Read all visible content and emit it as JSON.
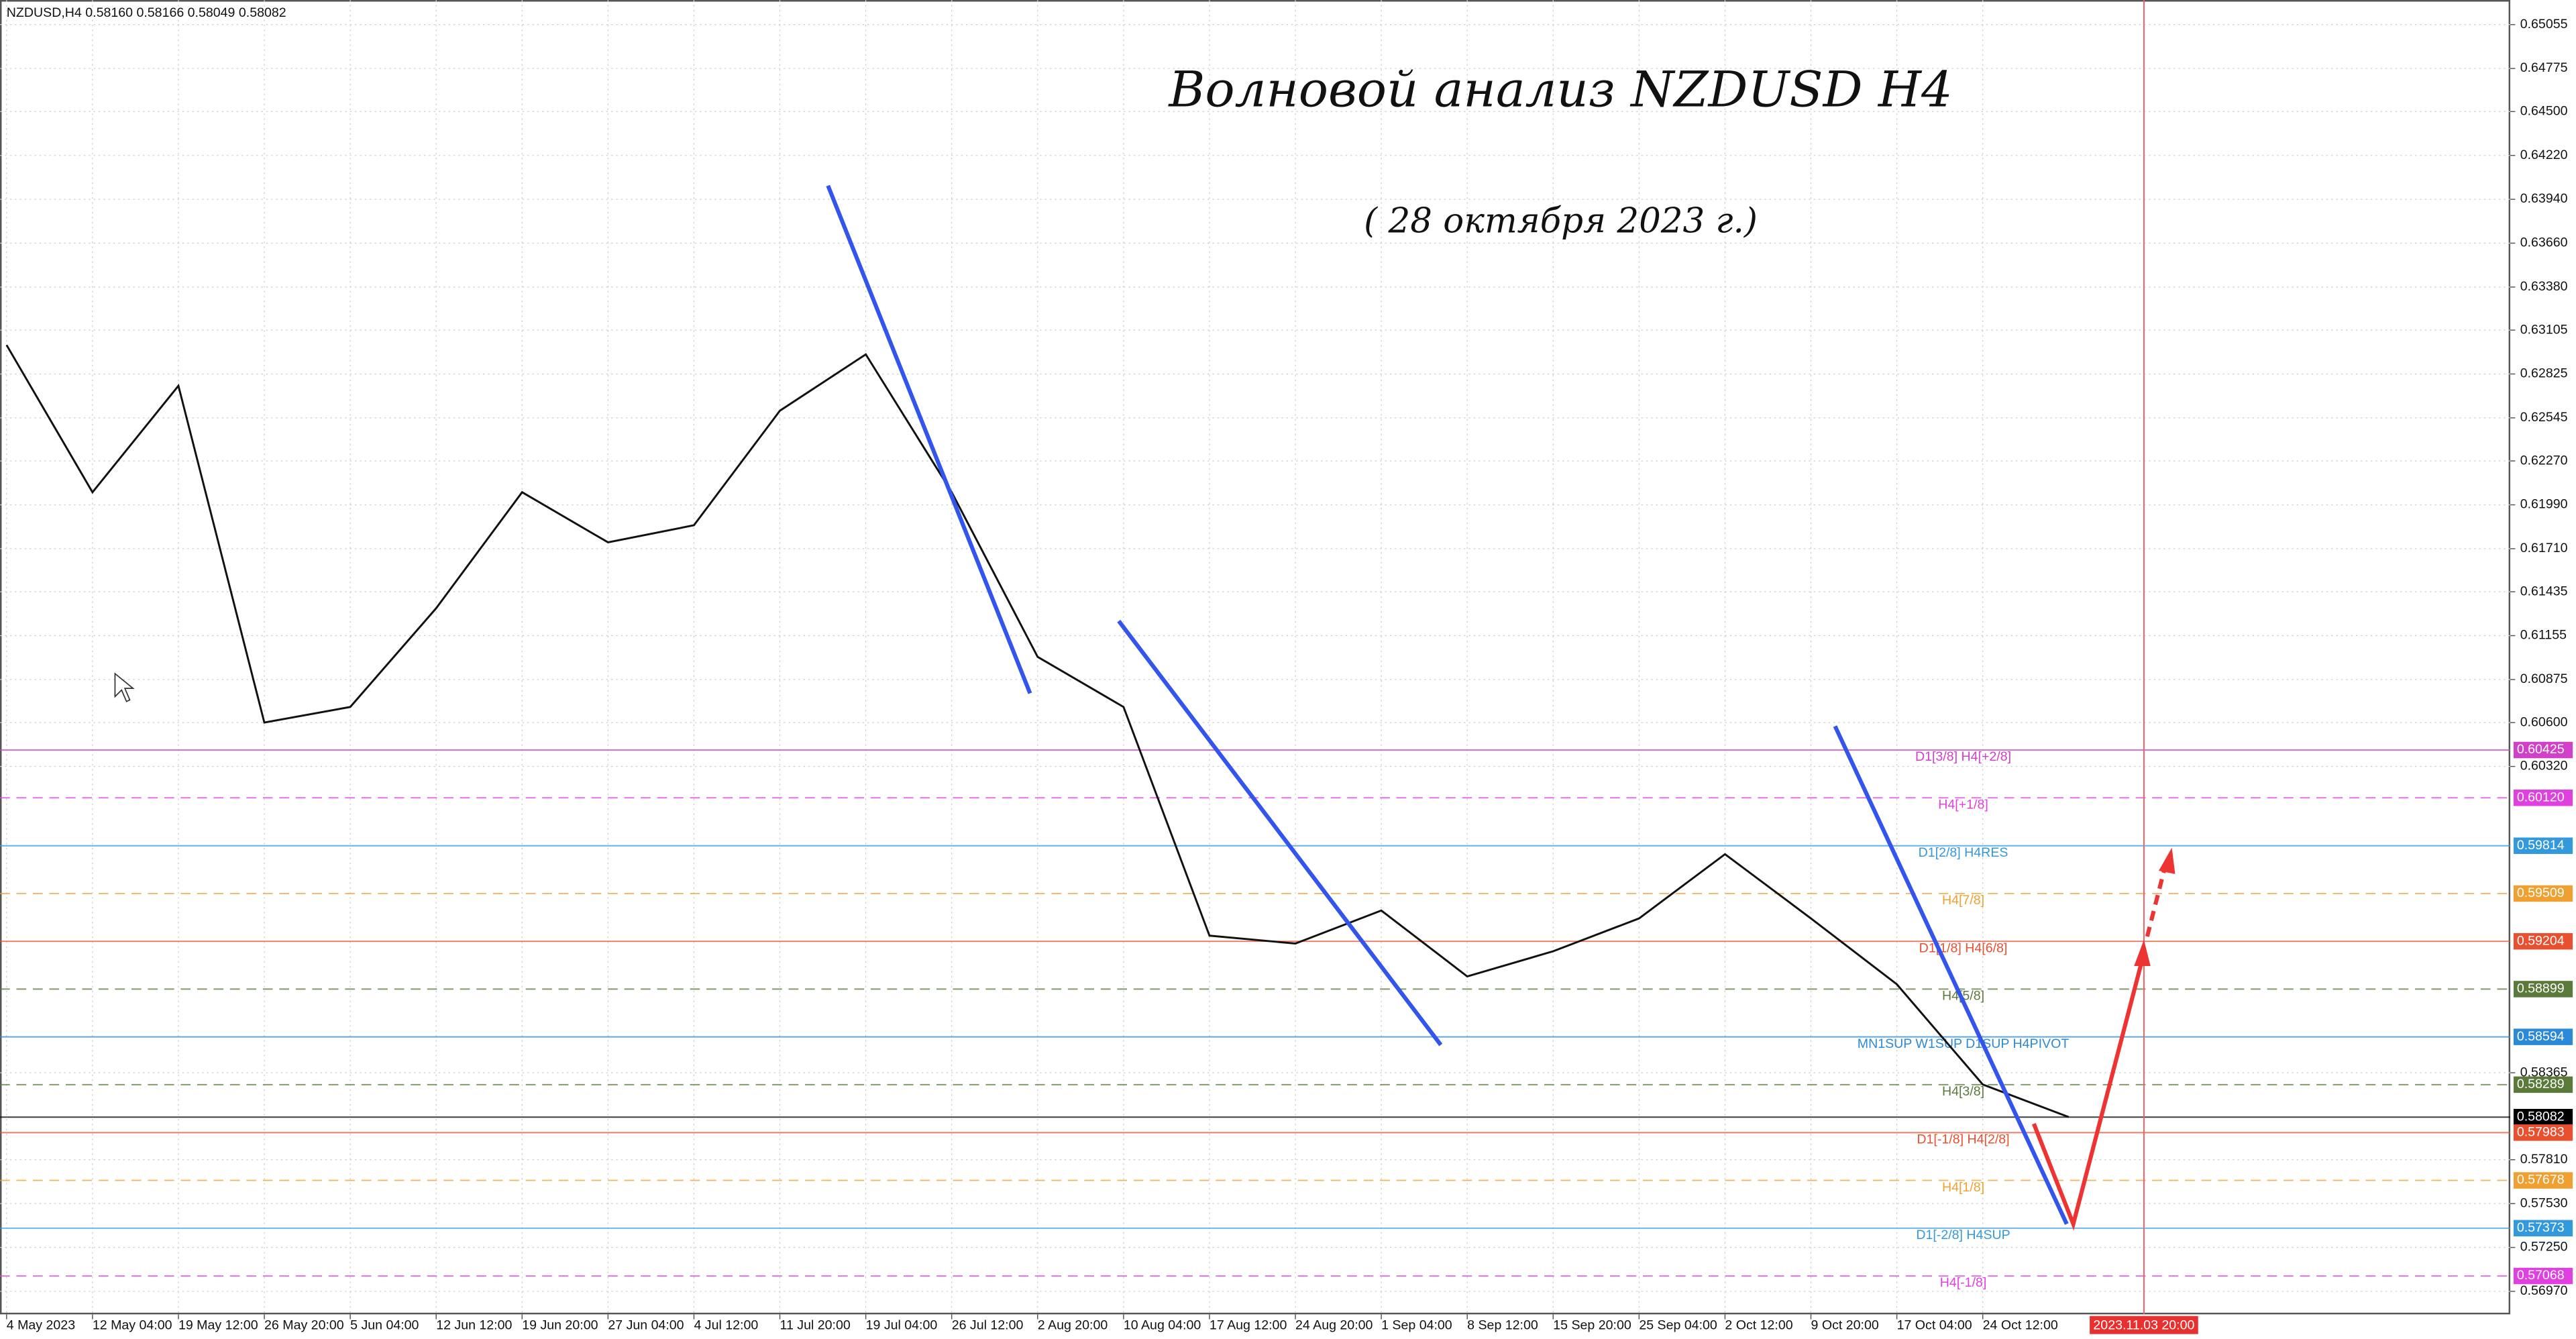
{
  "chart_data": {
    "type": "line",
    "info": "NZDUSD,H4  0.58160 0.58166 0.58049 0.58082",
    "title": "Волновой анализ NZDUSD H4",
    "subtitle": "( 28 октября  2023 г.)",
    "marker_label": "2023.11.03 20:00",
    "categories": [
      "4 May 2023",
      "12 May 04:00",
      "19 May 12:00",
      "26 May 20:00",
      "5 Jun 04:00",
      "12 Jun 12:00",
      "19 Jun 20:00",
      "27 Jun 04:00",
      "4 Jul 12:00",
      "11 Jul 20:00",
      "19 Jul 04:00",
      "26 Jul 12:00",
      "2 Aug 20:00",
      "10 Aug 04:00",
      "17 Aug 12:00",
      "24 Aug 20:00",
      "1 Sep 04:00",
      "8 Sep 12:00",
      "15 Sep 20:00",
      "25 Sep 04:00",
      "2 Oct 12:00",
      "9 Oct 20:00",
      "17 Oct 04:00",
      "24 Oct 12:00",
      null
    ],
    "series": [
      {
        "name": "NZDUSD,H4",
        "color": "#111111",
        "values": [
          0.6301,
          0.6207,
          0.6275,
          0.606,
          0.607,
          0.6133,
          0.6207,
          0.6175,
          0.6186,
          0.6259,
          0.6295,
          0.6207,
          0.6102,
          0.607,
          0.5924,
          0.5919,
          0.594,
          0.5898,
          0.5914,
          0.5935,
          0.5976,
          0.5935,
          0.5893,
          0.5829,
          0.58082
        ]
      }
    ],
    "ylim": [
      0.56823,
      0.65212
    ],
    "yticks": [
      0.65055,
      0.64775,
      {
        "value": 0.645,
        "label": "0.64500"
      },
      {
        "value": 0.6422,
        "label": "0.64220"
      },
      {
        "value": 0.6394,
        "label": "0.63940"
      },
      {
        "value": 0.6366,
        "label": "0.63660"
      },
      {
        "value": 0.6338,
        "label": "0.63380"
      },
      0.63105,
      0.62825,
      0.62545,
      {
        "value": 0.6227,
        "label": "0.62270"
      },
      {
        "value": 0.6199,
        "label": "0.61990"
      },
      {
        "value": 0.6171,
        "label": "0.61710"
      },
      0.61435,
      0.61155,
      0.60875,
      {
        "value": 0.606,
        "label": "0.60600"
      },
      {
        "value": 0.6032,
        "label": "0.60320"
      },
      0.58365,
      {
        "value": 0.5781,
        "label": "0.57810"
      },
      {
        "value": 0.5753,
        "label": "0.57530"
      },
      {
        "value": 0.5725,
        "label": "0.57250"
      },
      {
        "value": 0.5697,
        "label": "0.56970"
      }
    ],
    "grid": true,
    "levels": [
      {
        "name": "D1[3/8] H4[+2/8]",
        "price": 0.60425,
        "color": "#d040c8",
        "dashed": false
      },
      {
        "name": "H4[+1/8]",
        "price": {
          "value": 0.6012,
          "label": "0.60120"
        },
        "color": "#e040e0",
        "dashed": true
      },
      {
        "name": "D1[2/8] H4RES",
        "price": 0.59814,
        "color": "#3399dd",
        "dashed": false
      },
      {
        "name": "H4[7/8]",
        "price": 0.59509,
        "color": "#f0a030",
        "dashed": true
      },
      {
        "name": "D1[1/8] H4[6/8]",
        "price": 0.59204,
        "color": "#e85030",
        "dashed": false
      },
      {
        "name": "H4[5/8]",
        "price": 0.58899,
        "color": "#5a7a3a",
        "dashed": true
      },
      {
        "name": "MN1SUP W1SUP D1SUP H4PIVOT",
        "price": 0.58594,
        "color": "#2a8ad8",
        "dashed": false
      },
      {
        "name": "H4[3/8]",
        "price": 0.58289,
        "color": "#5a7a3a",
        "dashed": true
      },
      {
        "price": 0.58082,
        "color": "#000000",
        "dashed": false
      },
      {
        "name": "D1[-1/8] H4[2/8]",
        "price": 0.57983,
        "color": "#e85030",
        "dashed": false
      },
      {
        "name": "H4[1/8]",
        "price": 0.57678,
        "color": "#f0a030",
        "dashed": true
      },
      {
        "name": "D1[-2/8] H4SUP",
        "price": 0.57373,
        "color": "#3399dd",
        "dashed": false
      },
      {
        "name": "H4[-1/8]",
        "price": 0.57068,
        "color": "#e040e0",
        "dashed": true
      }
    ]
  }
}
